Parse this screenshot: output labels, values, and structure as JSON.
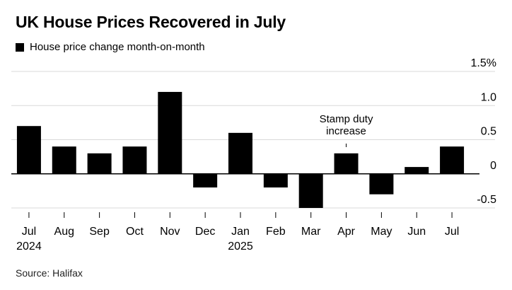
{
  "title": "UK House Prices Recovered in July",
  "source": "Source: Halifax",
  "chart_data": {
    "type": "bar",
    "categories": [
      "Jul",
      "Aug",
      "Sep",
      "Oct",
      "Nov",
      "Dec",
      "Jan",
      "Feb",
      "Mar",
      "Apr",
      "May",
      "Jun",
      "Jul"
    ],
    "year_labels": [
      "2024",
      "",
      "",
      "",
      "",
      "",
      "2025",
      "",
      "",
      "",
      "",
      "",
      ""
    ],
    "series": [
      {
        "name": "House price change month-on-month",
        "values": [
          0.7,
          0.4,
          0.3,
          0.4,
          1.2,
          -0.2,
          0.6,
          -0.2,
          -0.5,
          0.3,
          -0.3,
          0.1,
          0.4
        ]
      }
    ],
    "y_ticks": [
      -0.5,
      0,
      0.5,
      1.0,
      1.5
    ],
    "y_tick_labels": [
      "-0.5",
      "0",
      "0.5",
      "1.0",
      "1.5%"
    ],
    "ylim": [
      -0.5,
      1.5
    ],
    "grid": true,
    "legend_position": "top-left",
    "annotation": {
      "category": "Apr",
      "lines": [
        "Stamp duty",
        "increase"
      ]
    },
    "colors": {
      "bar": "#000000",
      "grid": "#d9d9d9",
      "zero_line": "#000000"
    }
  }
}
